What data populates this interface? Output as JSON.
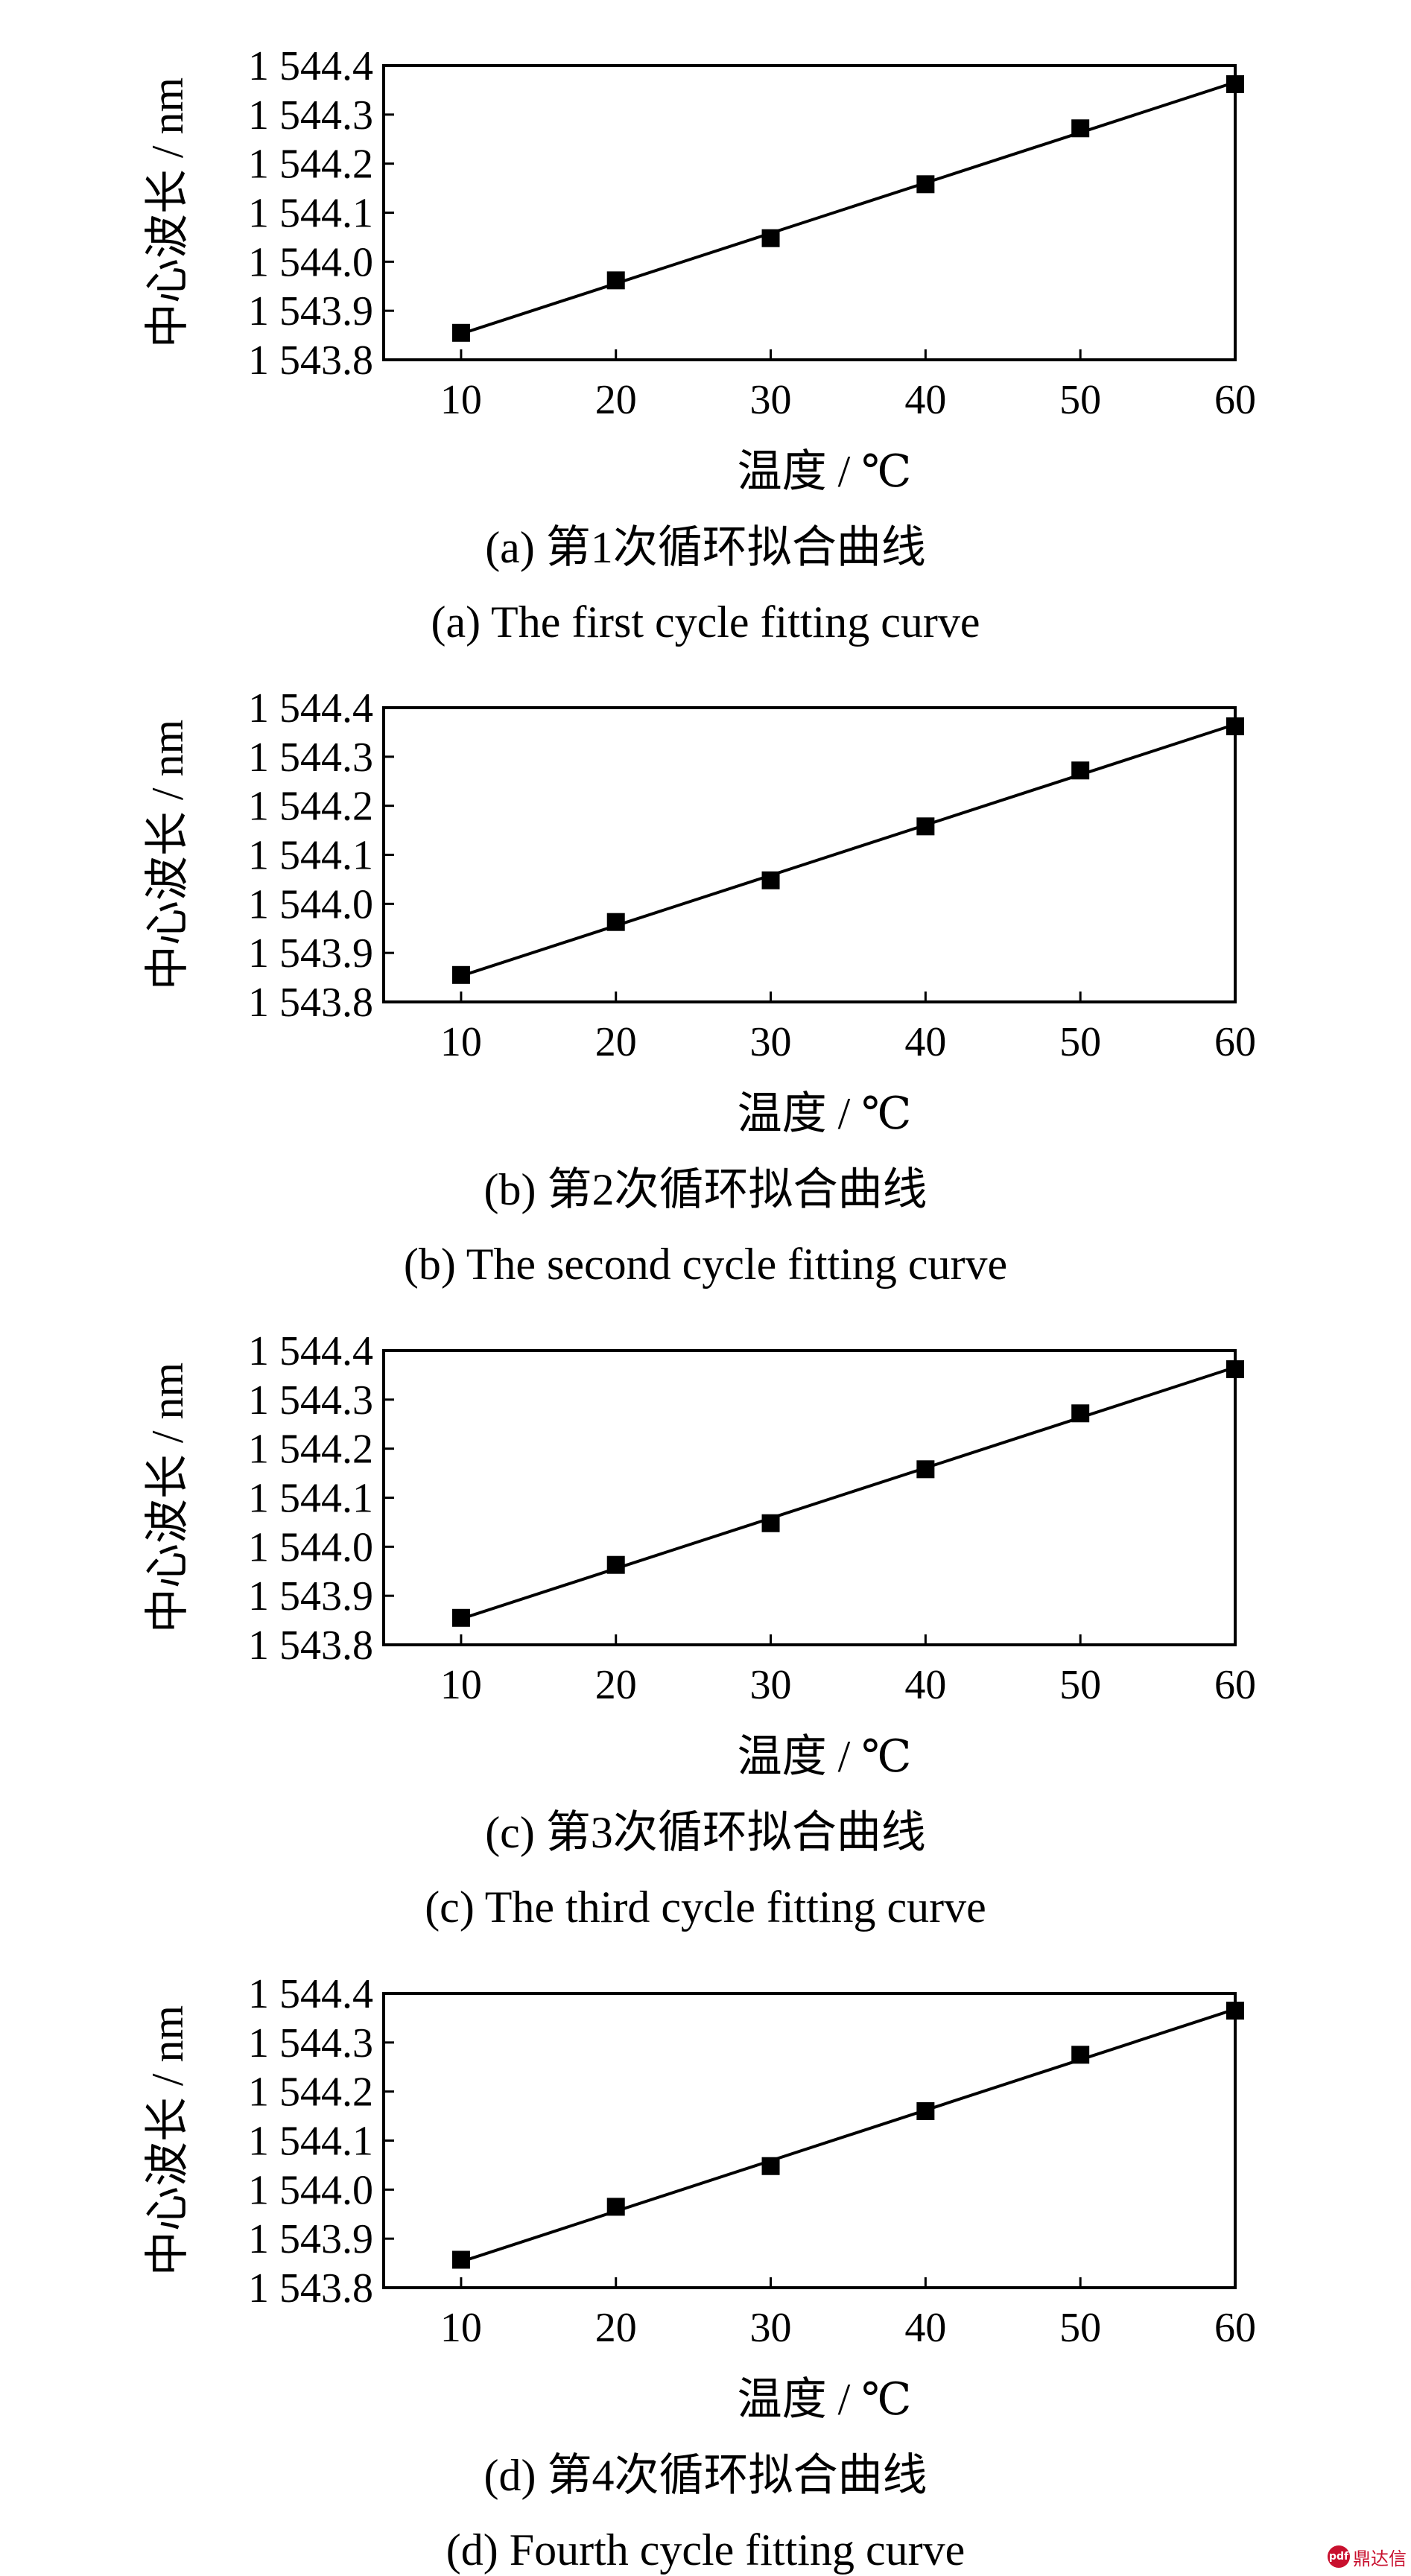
{
  "panels": [
    {
      "caption_cn": "(a)  第1次循环拟合曲线",
      "caption_en": "(a)  The first cycle fitting curve"
    },
    {
      "caption_cn": "(b)  第2次循环拟合曲线",
      "caption_en": "(b)  The second cycle fitting curve"
    },
    {
      "caption_cn": "(c)  第3次循环拟合曲线",
      "caption_en": "(c)  The third cycle fitting curve"
    },
    {
      "caption_cn": "(d)  第4次循环拟合曲线",
      "caption_en": "(d)  Fourth cycle fitting curve"
    }
  ],
  "chart_data": [
    {
      "type": "scatter",
      "xlabel": "温度 / ℃",
      "ylabel": "中心波长 / nm",
      "xlim": [
        5,
        60
      ],
      "ylim": [
        1543.8,
        1544.4
      ],
      "xticks": [
        10,
        20,
        30,
        40,
        50,
        60
      ],
      "yticks": [
        1543.8,
        1543.9,
        1544.0,
        1544.1,
        1544.2,
        1544.3,
        1544.4
      ],
      "ytick_labels": [
        "1 543.8",
        "1 543.9",
        "1 544.0",
        "1 544.1",
        "1 544.2",
        "1 544.3",
        "1 544.4"
      ],
      "grid": false,
      "x": [
        10,
        20,
        30,
        40,
        50,
        60
      ],
      "y": [
        1543.855,
        1543.962,
        1544.048,
        1544.158,
        1544.272,
        1544.362
      ],
      "fit_line": {
        "x": [
          10,
          60
        ],
        "y": [
          1543.853,
          1544.366
        ]
      }
    },
    {
      "type": "scatter",
      "xlabel": "温度 / ℃",
      "ylabel": "中心波长 / nm",
      "xlim": [
        5,
        60
      ],
      "ylim": [
        1543.8,
        1544.4
      ],
      "xticks": [
        10,
        20,
        30,
        40,
        50,
        60
      ],
      "yticks": [
        1543.8,
        1543.9,
        1544.0,
        1544.1,
        1544.2,
        1544.3,
        1544.4
      ],
      "ytick_labels": [
        "1 543.8",
        "1 543.9",
        "1 544.0",
        "1 544.1",
        "1 544.2",
        "1 544.3",
        "1 544.4"
      ],
      "grid": false,
      "x": [
        10,
        20,
        30,
        40,
        50,
        60
      ],
      "y": [
        1543.855,
        1543.963,
        1544.048,
        1544.158,
        1544.272,
        1544.362
      ],
      "fit_line": {
        "x": [
          10,
          60
        ],
        "y": [
          1543.853,
          1544.366
        ]
      }
    },
    {
      "type": "scatter",
      "xlabel": "温度 / ℃",
      "ylabel": "中心波长 / nm",
      "xlim": [
        5,
        60
      ],
      "ylim": [
        1543.8,
        1544.4
      ],
      "xticks": [
        10,
        20,
        30,
        40,
        50,
        60
      ],
      "yticks": [
        1543.8,
        1543.9,
        1544.0,
        1544.1,
        1544.2,
        1544.3,
        1544.4
      ],
      "ytick_labels": [
        "1 543.8",
        "1 543.9",
        "1 544.0",
        "1 544.1",
        "1 544.2",
        "1 544.3",
        "1 544.4"
      ],
      "grid": false,
      "x": [
        10,
        20,
        30,
        40,
        50,
        60
      ],
      "y": [
        1543.855,
        1543.963,
        1544.048,
        1544.158,
        1544.272,
        1544.362
      ],
      "fit_line": {
        "x": [
          10,
          60
        ],
        "y": [
          1543.853,
          1544.366
        ]
      }
    },
    {
      "type": "scatter",
      "xlabel": "温度 / ℃",
      "ylabel": "中心波长 / nm",
      "xlim": [
        5,
        60
      ],
      "ylim": [
        1543.8,
        1544.4
      ],
      "xticks": [
        10,
        20,
        30,
        40,
        50,
        60
      ],
      "yticks": [
        1543.8,
        1543.9,
        1544.0,
        1544.1,
        1544.2,
        1544.3,
        1544.4
      ],
      "ytick_labels": [
        "1 543.8",
        "1 543.9",
        "1 544.0",
        "1 544.1",
        "1 544.2",
        "1 544.3",
        "1 544.4"
      ],
      "grid": false,
      "x": [
        10,
        20,
        30,
        40,
        50,
        60
      ],
      "y": [
        1543.857,
        1543.965,
        1544.048,
        1544.16,
        1544.275,
        1544.365
      ],
      "fit_line": {
        "x": [
          10,
          60
        ],
        "y": [
          1543.853,
          1544.368
        ]
      }
    }
  ],
  "watermark": {
    "badge": "pdf",
    "text": "鼎达信"
  }
}
